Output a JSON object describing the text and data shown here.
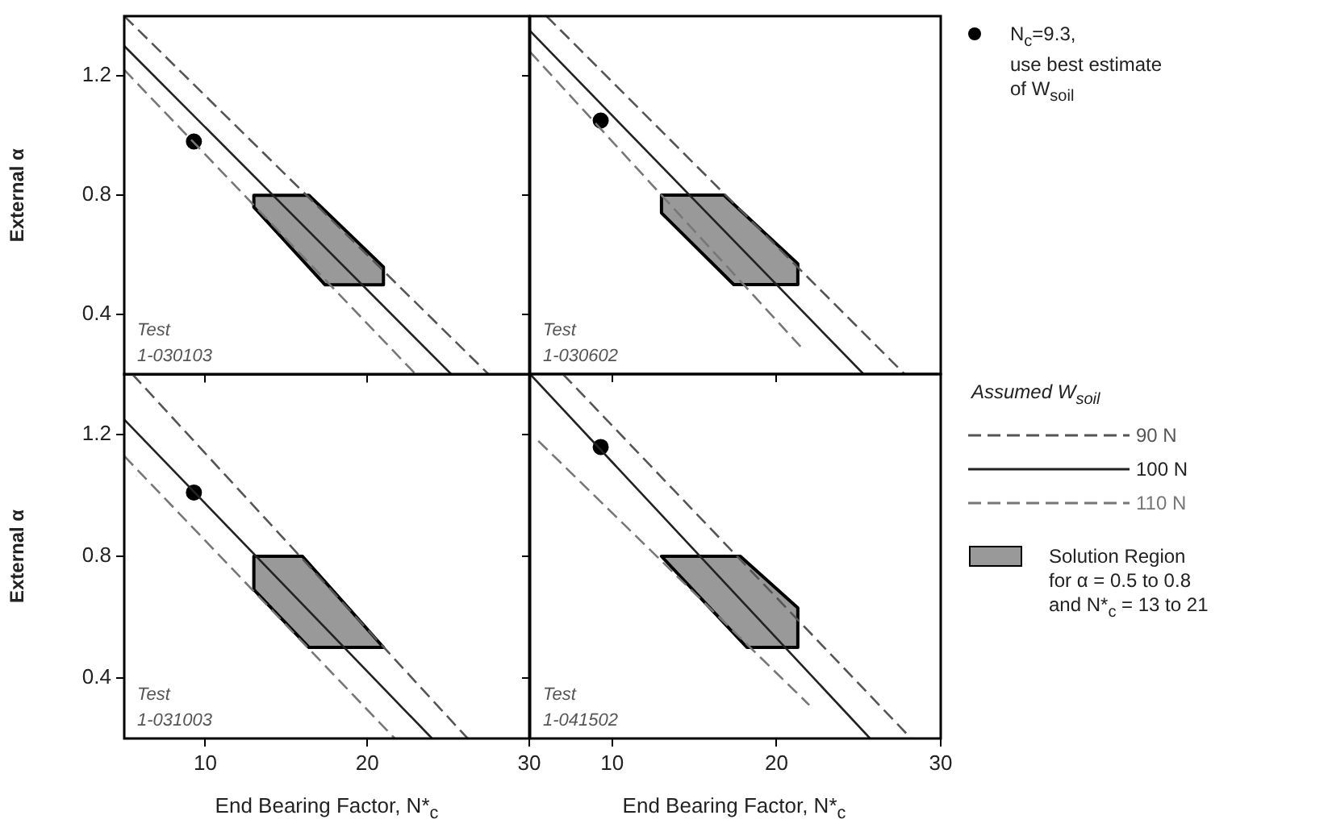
{
  "chart_data": [
    {
      "type": "scatter",
      "ylabel": "External α",
      "xlim": [
        5,
        30
      ],
      "ylim": [
        0.2,
        1.4
      ],
      "xticks": [
        10,
        20,
        30
      ],
      "yticks": [
        0.4,
        0.8,
        1.2
      ],
      "tick_labels": "y",
      "annotations": [
        "Test\n1-030103"
      ],
      "series": [
        {
          "type": "line",
          "color": "#555555",
          "line_style": "dashed",
          "marker": "none",
          "x": [
            5,
            27.5
          ],
          "values": [
            1.4,
            0.2
          ]
        },
        {
          "type": "line",
          "color": "#222222",
          "line_style": "solid",
          "marker": "none",
          "x": [
            5,
            25.2
          ],
          "values": [
            1.3,
            0.2
          ]
        },
        {
          "type": "line",
          "color": "#777777",
          "line_style": "dashed",
          "marker": "none",
          "x": [
            5,
            23
          ],
          "values": [
            1.22,
            0.2
          ]
        },
        {
          "type": "area",
          "color": "#999999",
          "x": [
            13,
            16.4,
            21,
            21,
            17.4,
            13
          ],
          "values": [
            0.8,
            0.8,
            0.56,
            0.5,
            0.5,
            0.76
          ]
        },
        {
          "type": "scatter",
          "color": "#000000",
          "marker": "circle",
          "x": [
            9.3
          ],
          "values": [
            0.98
          ]
        }
      ]
    },
    {
      "type": "scatter",
      "xlim": [
        5,
        30
      ],
      "ylim": [
        0.2,
        1.4
      ],
      "xticks": [
        10,
        20,
        30
      ],
      "yticks": [
        0.4,
        0.8,
        1.2
      ],
      "tick_labels": false,
      "legend": "right",
      "annotations": [
        "Test\n1-030602"
      ],
      "series": [
        {
          "type": "line",
          "color": "#555555",
          "line_style": "dashed",
          "marker": "none",
          "x": [
            6,
            27.8
          ],
          "values": [
            1.4,
            0.2
          ]
        },
        {
          "type": "line",
          "color": "#222222",
          "line_style": "solid",
          "marker": "none",
          "x": [
            5,
            25.3
          ],
          "values": [
            1.35,
            0.2
          ]
        },
        {
          "type": "line",
          "color": "#777777",
          "line_style": "dashed",
          "marker": "none",
          "x": [
            5,
            21.5
          ],
          "values": [
            1.28,
            0.29
          ]
        },
        {
          "type": "area",
          "color": "#999999",
          "x": [
            13,
            16.8,
            21.3,
            21.3,
            17.4,
            13
          ],
          "values": [
            0.8,
            0.8,
            0.57,
            0.5,
            0.5,
            0.74
          ]
        },
        {
          "type": "scatter",
          "name": "N$_{c}$=9.3,\nuse best estimate\nof W$_{soil}$",
          "color": "#000000",
          "marker": "circle",
          "x": [
            9.3
          ],
          "values": [
            1.05
          ]
        }
      ]
    },
    {
      "type": "scatter",
      "ylabel": "External α",
      "xlabel": "End Bearing Factor, N*$_{c}$",
      "xlim": [
        5,
        30
      ],
      "ylim": [
        0.2,
        1.4
      ],
      "xticks": [
        10,
        20,
        30
      ],
      "yticks": [
        0.4,
        0.8,
        1.2
      ],
      "annotations": [
        "Test\n1-031003"
      ],
      "series": [
        {
          "type": "line",
          "color": "#555555",
          "line_style": "dashed",
          "marker": "none",
          "x": [
            5.5,
            26.2
          ],
          "values": [
            1.4,
            0.2
          ]
        },
        {
          "type": "line",
          "color": "#222222",
          "line_style": "solid",
          "marker": "none",
          "x": [
            5,
            24
          ],
          "values": [
            1.25,
            0.2
          ]
        },
        {
          "type": "line",
          "color": "#777777",
          "line_style": "dashed",
          "marker": "none",
          "x": [
            5,
            21.7
          ],
          "values": [
            1.13,
            0.2
          ]
        },
        {
          "type": "area",
          "color": "#999999",
          "x": [
            13,
            16,
            21,
            16.4,
            13
          ],
          "values": [
            0.8,
            0.8,
            0.5,
            0.5,
            0.69
          ]
        },
        {
          "type": "scatter",
          "color": "#000000",
          "marker": "circle",
          "x": [
            9.3
          ],
          "values": [
            1.01
          ]
        }
      ]
    },
    {
      "type": "scatter",
      "xlabel": "End Bearing Factor, N*$_{c}$",
      "xlim": [
        5,
        30
      ],
      "ylim": [
        0.2,
        1.4
      ],
      "xticks": [
        10,
        20,
        30
      ],
      "yticks": [
        0.4,
        0.8,
        1.2
      ],
      "tick_labels": "x",
      "legend": "right",
      "legend_title": "Assumed W$_{soil}$",
      "annotations": [
        "Test\n1-041502"
      ],
      "series": [
        {
          "type": "line",
          "name": "90 N",
          "color": "#555555",
          "line_style": "dashed",
          "marker": "none",
          "x": [
            7,
            28.2
          ],
          "values": [
            1.4,
            0.2
          ]
        },
        {
          "type": "line",
          "name": "100 N",
          "color": "#222222",
          "line_style": "solid",
          "marker": "none",
          "x": [
            5,
            25.7
          ],
          "values": [
            1.4,
            0.2
          ]
        },
        {
          "type": "line",
          "name": "110 N",
          "color": "#777777",
          "line_style": "dashed",
          "marker": "none",
          "x": [
            5.5,
            22
          ],
          "values": [
            1.18,
            0.31
          ]
        },
        {
          "type": "area",
          "name": "Solution Region\nfor α = 0.5 to 0.8\nand N*$_{c}$ = 13 to 21",
          "color": "#999999",
          "x": [
            13,
            17.8,
            21.3,
            21.3,
            18.2
          ],
          "values": [
            0.8,
            0.8,
            0.63,
            0.5,
            0.5
          ]
        },
        {
          "type": "scatter",
          "color": "#000000",
          "marker": "circle",
          "x": [
            9.3
          ],
          "values": [
            1.16
          ]
        }
      ]
    }
  ]
}
